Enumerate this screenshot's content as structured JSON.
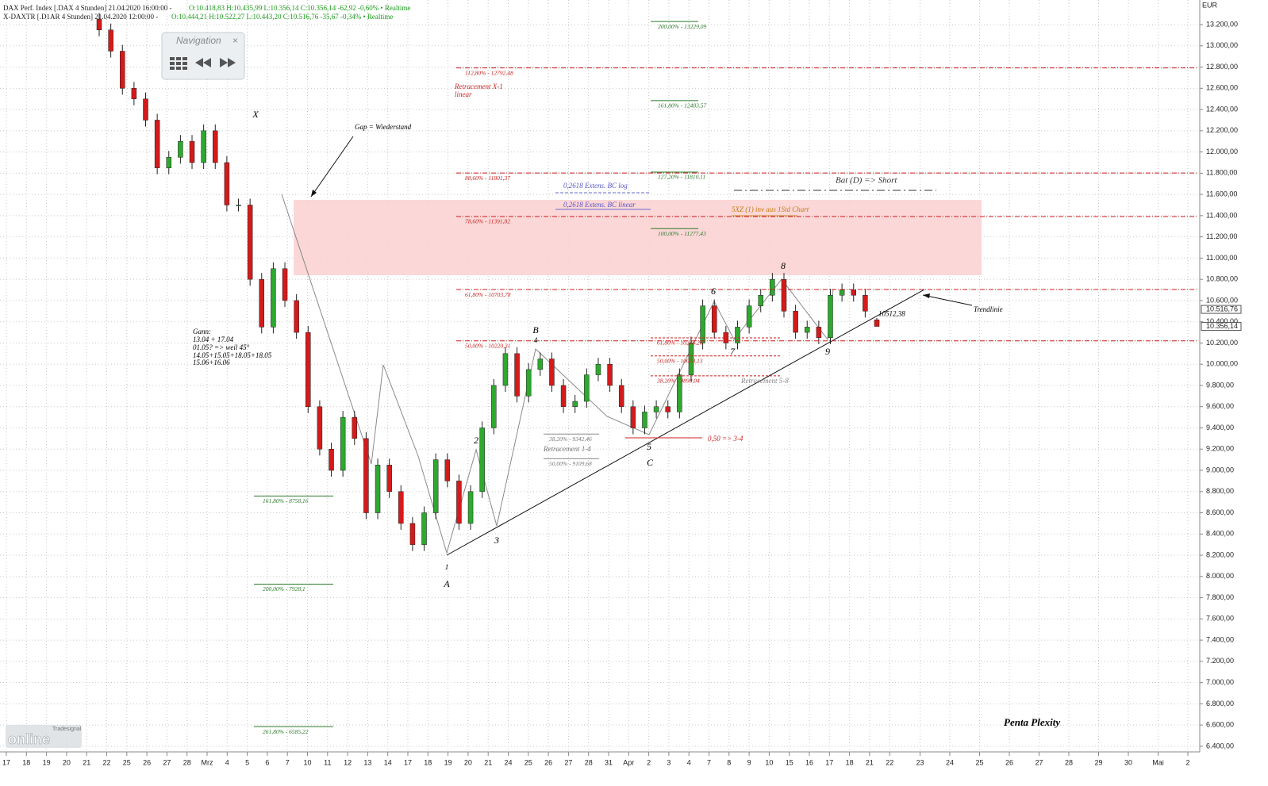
{
  "chart_data": {
    "type": "candlestick",
    "header": [
      {
        "instrument": "DAX Perf. Index [.DAX 4 Stunden] 21.04.2020 16:00:00 -",
        "quote": "O:10.418,83 H:10.435,99 L:10.356,14 C:10.356,14 -62,92 -0,60% • Realtime"
      },
      {
        "instrument": "X-DAXTR [.D1AR 4 Stunden] 21.04.2020 12:00:00 -",
        "quote": "O:10.444,21 H:10.522,27 L:10.443,20 C:10.516,76 -35,67 -0,34% • Realtime"
      }
    ],
    "y_unit": "EUR",
    "colors": {
      "up": "#2ea82e",
      "down": "#d41a1a"
    },
    "ylim": [
      6347,
      13432
    ],
    "yticks": [
      {
        "value": 6400,
        "label": "6.400,00"
      },
      {
        "value": 6600,
        "label": "6.600,00"
      },
      {
        "value": 6800,
        "label": "6.800,00"
      },
      {
        "value": 7000,
        "label": "7.000,00"
      },
      {
        "value": 7200,
        "label": "7.200,00"
      },
      {
        "value": 7400,
        "label": "7.400,00"
      },
      {
        "value": 7600,
        "label": "7.600,00"
      },
      {
        "value": 7800,
        "label": "7.800,00"
      },
      {
        "value": 8000,
        "label": "8.000,00"
      },
      {
        "value": 8200,
        "label": "8.200,00"
      },
      {
        "value": 8400,
        "label": "8.400,00"
      },
      {
        "value": 8600,
        "label": "8.600,00"
      },
      {
        "value": 8800,
        "label": "8.800,00"
      },
      {
        "value": 9000,
        "label": "9.000,00"
      },
      {
        "value": 9200,
        "label": "9.200,00"
      },
      {
        "value": 9400,
        "label": "9.400,00"
      },
      {
        "value": 9600,
        "label": "9.600,00"
      },
      {
        "value": 9800,
        "label": "9.800,00"
      },
      {
        "value": 10000,
        "label": "10.000,00"
      },
      {
        "value": 10200,
        "label": "10.200,00"
      },
      {
        "value": 10400,
        "label": "10.400,00"
      },
      {
        "value": 10600,
        "label": "10.600,00"
      },
      {
        "value": 10800,
        "label": "10.800,00"
      },
      {
        "value": 11000,
        "label": "11.000,00"
      },
      {
        "value": 11200,
        "label": "11.200,00"
      },
      {
        "value": 11400,
        "label": "11.400,00"
      },
      {
        "value": 11600,
        "label": "11.600,00"
      },
      {
        "value": 11800,
        "label": "11.800,00"
      },
      {
        "value": 12000,
        "label": "12.000,00"
      },
      {
        "value": 12200,
        "label": "12.200,00"
      },
      {
        "value": 12400,
        "label": "12.400,00"
      },
      {
        "value": 12600,
        "label": "12.600,00"
      },
      {
        "value": 12800,
        "label": "12.800,00"
      },
      {
        "value": 13000,
        "label": "13.000,00"
      },
      {
        "value": 13200,
        "label": "13.200,00"
      }
    ],
    "price_markers": [
      {
        "value": 10516.76,
        "label": "10.516,76"
      },
      {
        "value": 10356.14,
        "label": "10.356,14"
      }
    ],
    "x_labels": [
      "17",
      "18",
      "19",
      "20",
      "21",
      "22",
      "25",
      "26",
      "27",
      "28",
      "Mrz",
      "4",
      "5",
      "6",
      "7",
      "10",
      "11",
      "12",
      "13",
      "14",
      "17",
      "18",
      "19",
      "20",
      "21",
      "24",
      "25",
      "26",
      "27",
      "28",
      "31",
      "Apr",
      "2",
      "3",
      "4",
      "7",
      "8",
      "9",
      "10",
      "15",
      "16",
      "17",
      "18",
      "21",
      "22",
      "23",
      "24",
      "25",
      "26",
      "27",
      "28",
      "29",
      "30",
      "Mai",
      "2"
    ],
    "grid": true,
    "candles": [
      [
        13250,
        13310,
        13090,
        13150
      ],
      [
        13150,
        13210,
        12890,
        12950
      ],
      [
        12950,
        13010,
        12540,
        12600
      ],
      [
        12600,
        12660,
        12440,
        12500
      ],
      [
        12500,
        12560,
        12240,
        12300
      ],
      [
        12300,
        12360,
        11790,
        11850
      ],
      [
        11850,
        12010,
        11790,
        11950
      ],
      [
        11950,
        12160,
        11890,
        12100
      ],
      [
        12100,
        12160,
        11840,
        11900
      ],
      [
        11900,
        12260,
        11840,
        12200
      ],
      [
        12200,
        12260,
        11840,
        11900
      ],
      [
        11900,
        11960,
        11440,
        11500
      ],
      [
        11500,
        11560,
        11440,
        11500
      ],
      [
        11500,
        11560,
        10740,
        10800
      ],
      [
        10800,
        10860,
        10290,
        10350
      ],
      [
        10350,
        10960,
        10290,
        10900
      ],
      [
        10900,
        10960,
        10540,
        10600
      ],
      [
        10600,
        10660,
        10240,
        10300
      ],
      [
        10300,
        10360,
        9540,
        9600
      ],
      [
        9600,
        9660,
        9140,
        9200
      ],
      [
        9200,
        9260,
        8940,
        9000
      ],
      [
        9000,
        9560,
        8940,
        9500
      ],
      [
        9500,
        9560,
        9240,
        9300
      ],
      [
        9300,
        9360,
        8540,
        8600
      ],
      [
        8600,
        9110,
        8540,
        9050
      ],
      [
        9050,
        9110,
        8740,
        8800
      ],
      [
        8800,
        8860,
        8440,
        8500
      ],
      [
        8500,
        8560,
        8240,
        8300
      ],
      [
        8300,
        8660,
        8240,
        8600
      ],
      [
        8600,
        9160,
        8540,
        9100
      ],
      [
        9100,
        9160,
        8840,
        8900
      ],
      [
        8900,
        8960,
        8440,
        8500
      ],
      [
        8500,
        8860,
        8440,
        8800
      ],
      [
        8800,
        9460,
        8740,
        9400
      ],
      [
        9400,
        9860,
        9340,
        9800
      ],
      [
        9800,
        10160,
        9740,
        10100
      ],
      [
        10100,
        10160,
        9640,
        9700
      ],
      [
        9700,
        10010,
        9640,
        9950
      ],
      [
        9950,
        10110,
        9890,
        10050
      ],
      [
        10050,
        10110,
        9740,
        9800
      ],
      [
        9800,
        9860,
        9540,
        9600
      ],
      [
        9600,
        9710,
        9540,
        9650
      ],
      [
        9650,
        9960,
        9590,
        9900
      ],
      [
        9900,
        10060,
        9840,
        10000
      ],
      [
        10000,
        10060,
        9740,
        9800
      ],
      [
        9800,
        9860,
        9540,
        9600
      ],
      [
        9600,
        9660,
        9340,
        9400
      ],
      [
        9400,
        9610,
        9340,
        9550
      ],
      [
        9550,
        9660,
        9490,
        9600
      ],
      [
        9600,
        9660,
        9490,
        9550
      ],
      [
        9550,
        9960,
        9490,
        9900
      ],
      [
        9900,
        10260,
        9840,
        10200
      ],
      [
        10200,
        10610,
        10140,
        10550
      ],
      [
        10550,
        10610,
        10240,
        10300
      ],
      [
        10300,
        10360,
        10140,
        10200
      ],
      [
        10200,
        10410,
        10140,
        10350
      ],
      [
        10350,
        10610,
        10290,
        10550
      ],
      [
        10550,
        10710,
        10490,
        10650
      ],
      [
        10650,
        10860,
        10590,
        10800
      ],
      [
        10800,
        10860,
        10440,
        10500
      ],
      [
        10500,
        10560,
        10240,
        10300
      ],
      [
        10300,
        10410,
        10240,
        10350
      ],
      [
        10350,
        10410,
        10190,
        10250
      ],
      [
        10250,
        10710,
        10190,
        10650
      ],
      [
        10650,
        10760,
        10590,
        10700
      ],
      [
        10700,
        10760,
        10590,
        10650
      ],
      [
        10650,
        10710,
        10440,
        10500
      ],
      [
        10418.83,
        10435.99,
        10356.14,
        10356.14
      ]
    ],
    "last_value": {
      "value": 10512.38,
      "label": "10512,38"
    },
    "retracement_x1": {
      "title": "Retracement X-1",
      "subtitle": "linear",
      "levels": [
        {
          "value": 12792.48,
          "label": "112,80% - 12792,48"
        },
        {
          "value": 11801.37,
          "label": "88,60% - 11801,37"
        },
        {
          "value": 11391.82,
          "label": "78,60% - 11391,82"
        },
        {
          "value": 10703.78,
          "label": "61,80% - 10703,78"
        },
        {
          "value": 10220.31,
          "label": "50,00% - 10220,31"
        }
      ]
    },
    "extensions_right": [
      {
        "value": 13229.09,
        "label": "200,00% - 13229,09"
      },
      {
        "value": 12483.57,
        "label": "161,80% - 12483,57"
      },
      {
        "value": 11810.11,
        "label": "127,20% - 11810,11"
      },
      {
        "value": 11277.43,
        "label": "100,00% - 11277,43"
      }
    ],
    "extensions_left": [
      {
        "value": 8758.16,
        "label": "161,80% - 8758,16"
      },
      {
        "value": 7928.1,
        "label": "200,00% - 7928,1"
      },
      {
        "value": 6585.22,
        "label": "261,80% - 6585,22"
      }
    ],
    "retracement_5_8": {
      "title": "Retracement 5-8",
      "levels": [
        {
          "value": 10248.2,
          "label": "61,80% - 10248,20"
        },
        {
          "value": 10078.13,
          "label": "50,00% - 10078,13"
        },
        {
          "value": 9890.04,
          "label": "38,20% - 9890,04"
        }
      ]
    },
    "retracement_1_4": {
      "title": "Retracement 1-4",
      "levels": [
        {
          "value": 9342.46,
          "label": "38,20% - 9342,46"
        },
        {
          "value": 9109.68,
          "label": "50,00% - 9109,68"
        }
      ]
    },
    "notes": {
      "gap": "Gap = Wiederstand",
      "trend": "Trendlinie",
      "bat": "Bat (D) => Short",
      "xz": "5XZ (1) inv aus 1Std Chart",
      "ext_log": "0,2618 Extens. BC log",
      "ext_lin": "0,2618 Extens. BC linear",
      "half": "0,50 => 3-4",
      "signature": "Penta Plexity"
    },
    "gann": [
      "Gann:",
      "13.04 + 17.04",
      "01.05? => weil 45°",
      "14.05+15.05+18.05+18.05",
      "15.06+16.06"
    ],
    "waves": [
      "X",
      "1",
      "A",
      "2",
      "3",
      "B",
      "4",
      "5",
      "C",
      "6",
      "7",
      "8",
      "9"
    ]
  },
  "ui": {
    "navigation": "Navigation",
    "close": "×",
    "logo_small": "Tradesignal",
    "logo": "online"
  }
}
